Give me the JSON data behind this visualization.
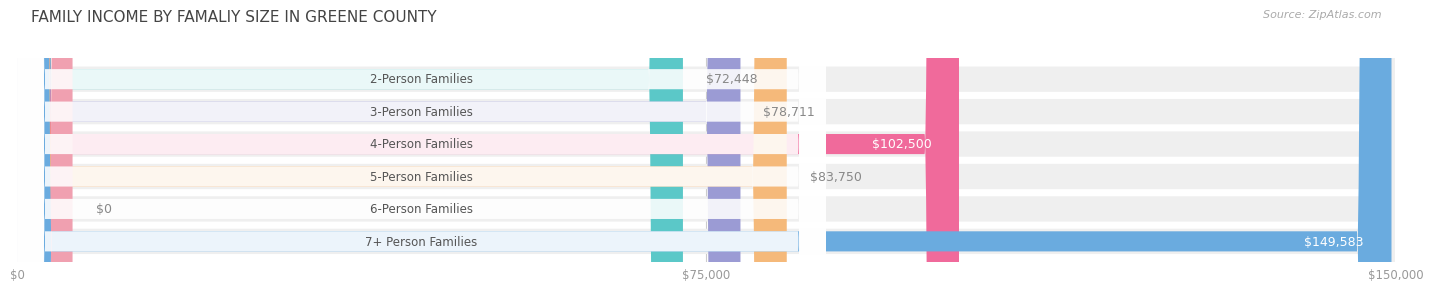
{
  "title": "FAMILY INCOME BY FAMALIY SIZE IN GREENE COUNTY",
  "source": "Source: ZipAtlas.com",
  "categories": [
    "2-Person Families",
    "3-Person Families",
    "4-Person Families",
    "5-Person Families",
    "6-Person Families",
    "7+ Person Families"
  ],
  "values": [
    72448,
    78711,
    102500,
    83750,
    0,
    149583
  ],
  "labels": [
    "$72,448",
    "$78,711",
    "$102,500",
    "$83,750",
    "$0",
    "$149,583"
  ],
  "bar_colors": [
    "#5bc8c8",
    "#9b9bd4",
    "#f06a9b",
    "#f5b97a",
    "#f0a0b0",
    "#6aabdf"
  ],
  "bar_bg_color": "#efefef",
  "label_inside_color": "#ffffff",
  "label_outside_color": "#888888",
  "max_value": 150000,
  "xticks": [
    0,
    75000,
    150000
  ],
  "xtick_labels": [
    "$0",
    "$75,000",
    "$150,000"
  ],
  "background_color": "#ffffff",
  "title_fontsize": 11,
  "bar_label_fontsize": 9,
  "category_fontsize": 8.5,
  "source_fontsize": 8
}
